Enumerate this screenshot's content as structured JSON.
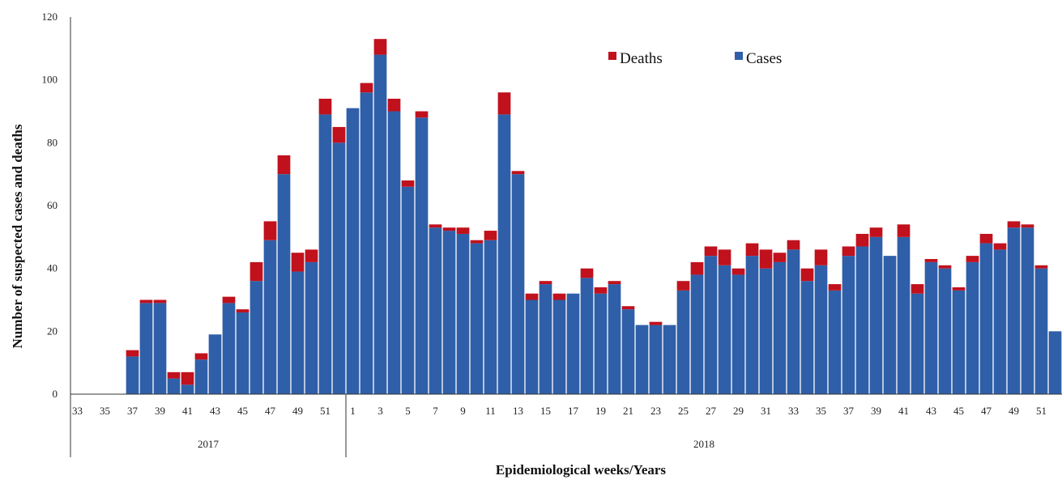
{
  "chart_data": {
    "type": "bar",
    "stacked": true,
    "title": "",
    "xlabel": "Epidemiological weeks/Years",
    "ylabel": "Number of suspected cases and deaths",
    "ylim": [
      0,
      120
    ],
    "yticks": [
      0,
      20,
      40,
      60,
      80,
      100,
      120
    ],
    "legend": {
      "placement": "top-right",
      "entries": [
        "Deaths",
        "Cases"
      ]
    },
    "grid": false,
    "colors": {
      "Cases": "#2f5fa8",
      "Deaths": "#c0111d"
    },
    "year_groups": [
      {
        "label": "2017",
        "from_week": 33,
        "to_week": 52
      },
      {
        "label": "2018",
        "from_week": 1,
        "to_week": 52
      }
    ],
    "categories": [
      "33",
      "34",
      "35",
      "36",
      "37",
      "38",
      "39",
      "40",
      "41",
      "42",
      "43",
      "44",
      "45",
      "46",
      "47",
      "48",
      "49",
      "50",
      "51",
      "52",
      "1",
      "2",
      "3",
      "4",
      "5",
      "6",
      "7",
      "8",
      "9",
      "10",
      "11",
      "12",
      "13",
      "14",
      "15",
      "16",
      "17",
      "18",
      "19",
      "20",
      "21",
      "22",
      "23",
      "24",
      "25",
      "26",
      "27",
      "28",
      "29",
      "30",
      "31",
      "32",
      "33",
      "34",
      "35",
      "36",
      "37",
      "38",
      "39",
      "40",
      "41",
      "42",
      "43",
      "44",
      "45",
      "46",
      "47",
      "48",
      "49",
      "50",
      "51",
      "52"
    ],
    "tick_labels": [
      "33",
      "",
      "35",
      "",
      "37",
      "",
      "39",
      "",
      "41",
      "",
      "43",
      "",
      "45",
      "",
      "47",
      "",
      "49",
      "",
      "51",
      "",
      "1",
      "",
      "3",
      "",
      "5",
      "",
      "7",
      "",
      "9",
      "",
      "11",
      "",
      "13",
      "",
      "15",
      "",
      "17",
      "",
      "19",
      "",
      "21",
      "",
      "23",
      "",
      "25",
      "",
      "27",
      "",
      "29",
      "",
      "31",
      "",
      "33",
      "",
      "35",
      "",
      "37",
      "",
      "39",
      "",
      "41",
      "",
      "43",
      "",
      "45",
      "",
      "47",
      "",
      "49",
      "",
      "51",
      ""
    ],
    "series": [
      {
        "name": "Cases",
        "values": [
          0,
          0,
          0,
          0,
          12,
          29,
          29,
          5,
          3,
          11,
          19,
          29,
          26,
          36,
          49,
          70,
          39,
          42,
          89,
          80,
          91,
          96,
          108,
          90,
          66,
          88,
          53,
          52,
          51,
          48,
          49,
          89,
          70,
          30,
          35,
          30,
          32,
          37,
          32,
          35,
          27,
          22,
          22,
          22,
          33,
          38,
          44,
          41,
          38,
          44,
          40,
          42,
          46,
          36,
          41,
          33,
          44,
          47,
          50,
          44,
          50,
          32,
          42,
          40,
          33,
          42,
          48,
          46,
          53,
          53,
          40,
          20
        ]
      },
      {
        "name": "Deaths",
        "values": [
          0,
          0,
          0,
          0,
          2,
          1,
          1,
          2,
          4,
          2,
          0,
          2,
          1,
          6,
          6,
          6,
          6,
          4,
          5,
          5,
          0,
          3,
          5,
          4,
          2,
          2,
          1,
          1,
          2,
          1,
          3,
          7,
          1,
          2,
          1,
          2,
          0,
          3,
          2,
          1,
          1,
          0,
          1,
          0,
          3,
          4,
          3,
          5,
          2,
          4,
          6,
          3,
          3,
          4,
          5,
          2,
          3,
          4,
          3,
          0,
          4,
          3,
          1,
          1,
          1,
          2,
          3,
          2,
          2,
          1,
          1,
          0
        ]
      }
    ]
  }
}
